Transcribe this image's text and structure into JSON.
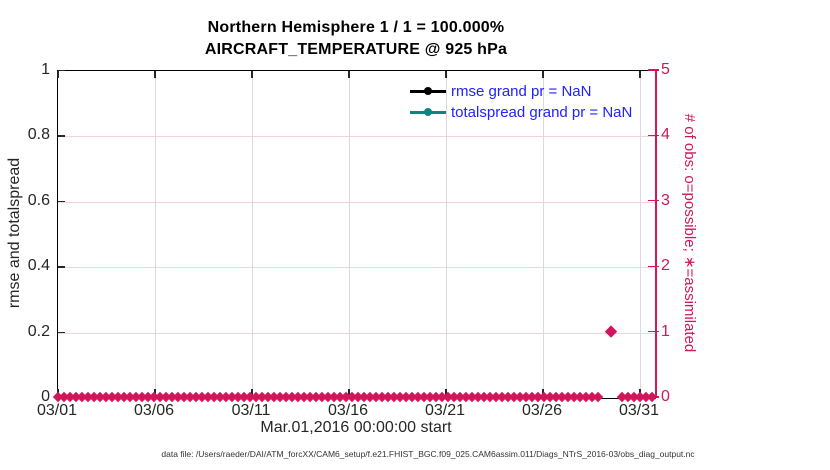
{
  "figure": {
    "title_line1": "Northern Hemisphere 1 / 1 = 100.000%",
    "title_line2": "AIRCRAFT_TEMPERATURE @ 925 hPa",
    "footer": "data file: /Users/raeder/DAI/ATM_forcXX/CAM6_setup/f.e21.FHIST_BGC.f09_025.CAM6assim.011/Diags_NTrS_2016-03/obs_diag_output.nc"
  },
  "axes": {
    "left": {
      "label": "rmse and totalspread",
      "tick_labels": [
        "0",
        "0.2",
        "0.4",
        "0.6",
        "0.8",
        "1"
      ],
      "color": "#262626"
    },
    "right": {
      "label": "# of obs: o=possible; ∗=assimilated",
      "tick_labels": [
        "0",
        "1",
        "2",
        "3",
        "4",
        "5"
      ],
      "color": "#d2155c"
    },
    "x": {
      "label": "Mar.01,2016 00:00:00 start",
      "tick_labels": [
        "03/01",
        "03/06",
        "03/11",
        "03/16",
        "03/21",
        "03/26",
        "03/31"
      ]
    }
  },
  "legend": {
    "items": [
      {
        "label": "rmse grand pr = NaN",
        "color": "#000000"
      },
      {
        "label": "totalspread grand pr = NaN",
        "color": "#0e8580"
      }
    ],
    "text_color": "#2121ff"
  },
  "colors": {
    "obs_pink": "#d2155c",
    "grid_horizontal": "#f6d2e0",
    "grid_vertical": "#d9d9d9",
    "axis_dark": "#262626",
    "legend_blue": "#2121ff",
    "teal": "#0e8580"
  },
  "chart_data": {
    "type": "line",
    "title": "Northern Hemisphere 1 / 1 = 100.000%",
    "subtitle": "AIRCRAFT_TEMPERATURE @ 925 hPa",
    "xlabel": "Mar.01,2016 00:00:00 start",
    "x_tick_labels": [
      "03/01",
      "03/06",
      "03/11",
      "03/16",
      "03/21",
      "03/26",
      "03/31"
    ],
    "x_range": [
      "2016-03-01 00:00",
      "2016-03-31 ~20:00"
    ],
    "left_axis": {
      "label": "rmse and totalspread",
      "ylim": [
        0,
        1
      ],
      "ticks": [
        0,
        0.2,
        0.4,
        0.6,
        0.8,
        1
      ]
    },
    "right_axis": {
      "label": "# of obs: o=possible; ∗=assimilated",
      "ylim": [
        0,
        5
      ],
      "ticks": [
        0,
        1,
        2,
        3,
        4,
        5
      ]
    },
    "grid": true,
    "legend_position": "upper right, no box",
    "series": [
      {
        "name": "rmse",
        "legend": "rmse grand pr = NaN",
        "axis": "left",
        "color": "#000000",
        "grand_mean": "NaN",
        "values": "all NaN — no curve drawn"
      },
      {
        "name": "totalspread",
        "legend": "totalspread grand pr = NaN",
        "axis": "left",
        "color": "#0e8580",
        "grand_mean": "NaN",
        "values": "all NaN — no curve drawn"
      },
      {
        "name": "obs_count",
        "axis": "right",
        "color": "#d2155c",
        "marker": "filled-diamond",
        "description": "observation count at every assimilation time from 03/01 through 03/31; value 0 at all times except a single count of 1 near 03/29",
        "baseline_value": 0,
        "special_points": [
          {
            "x": "2016-03-29",
            "y": 1
          }
        ]
      }
    ]
  }
}
